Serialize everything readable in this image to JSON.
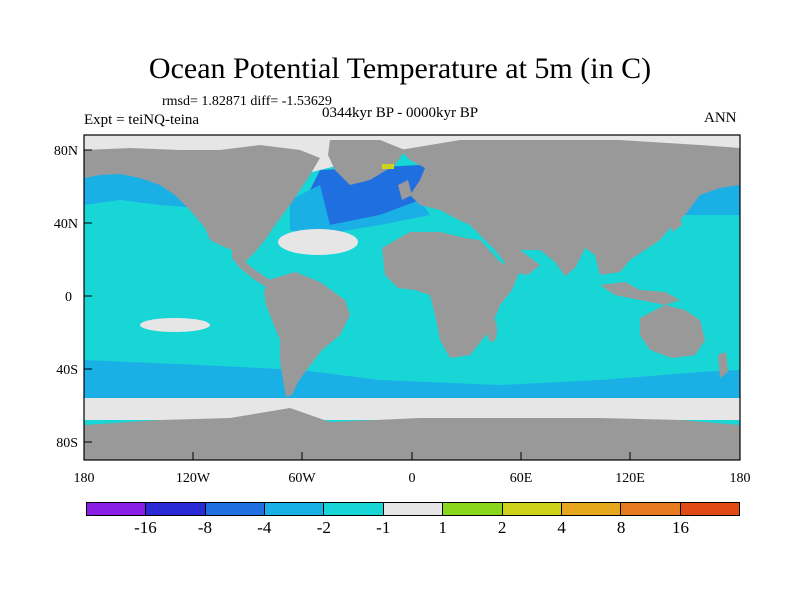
{
  "title": "Ocean Potential Temperature at 5m (in C)",
  "stats_text": "rmsd= 1.82871 diff= -1.53629",
  "experiment": "Expt = teiNQ-teina",
  "period": "0344kyr BP - 0000kyr BP",
  "season": "ANN",
  "axes": {
    "lat_ticks": [
      "80N",
      "40N",
      "0",
      "40S",
      "80S"
    ],
    "lon_ticks": [
      "180",
      "120W",
      "60W",
      "0",
      "60E",
      "120E",
      "180"
    ]
  },
  "colorbar": {
    "colors": [
      "#8a1ee6",
      "#2a2ad6",
      "#1f6fe0",
      "#1ab0e6",
      "#19d6d6",
      "#e6e6e6",
      "#8ad61e",
      "#cfd21a",
      "#e6a71e",
      "#e67a1e",
      "#e04a14"
    ],
    "labels": [
      "-16",
      "-8",
      "-4",
      "-2",
      "-1",
      "1",
      "2",
      "4",
      "8",
      "16"
    ]
  },
  "palette": {
    "land": "#999999",
    "ocean_default": "#19d6d6",
    "ice": "#e6e6e6",
    "cool": "#1ab0e6",
    "cold": "#1f6fe0",
    "warm": "#cfd21a"
  }
}
